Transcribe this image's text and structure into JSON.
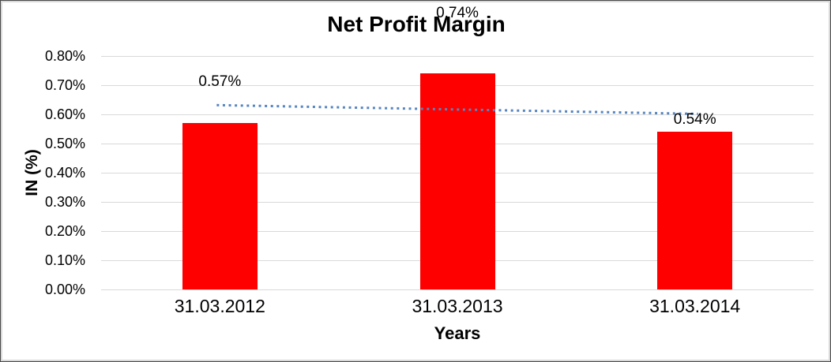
{
  "chart_data": {
    "type": "bar",
    "title": "Net Profit Margin",
    "xlabel": "Years",
    "ylabel": "IN (%)",
    "categories": [
      "31.03.2012",
      "31.03.2013",
      "31.03.2014"
    ],
    "values": [
      0.57,
      0.74,
      0.54
    ],
    "data_labels": [
      "0.57%",
      "0.74%",
      "0.54%"
    ],
    "ylim": [
      0,
      0.8
    ],
    "ytick_step": 0.1,
    "ytick_labels": [
      "0.00%",
      "0.10%",
      "0.20%",
      "0.30%",
      "0.40%",
      "0.50%",
      "0.60%",
      "0.70%",
      "0.80%"
    ],
    "grid": true,
    "legend_position": "none",
    "bar_color": "#FF0000",
    "gridline_color": "#D9D9D9",
    "trendline": {
      "type": "linear",
      "style": "dotted",
      "color": "#5585C2"
    }
  }
}
